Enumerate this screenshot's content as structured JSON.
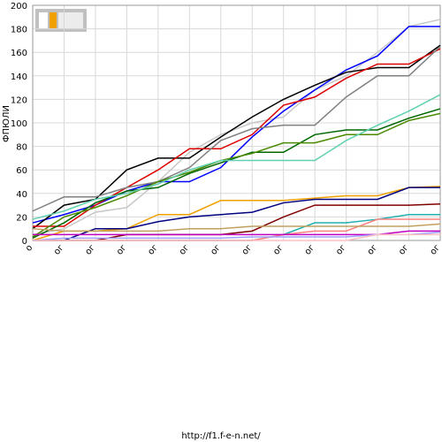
{
  "chart_data": {
    "type": "line",
    "y_label": "ФПЮЛИ",
    "footer": "http://f1.f-e-n.net/",
    "categories": [
      "о",
      "ог",
      "ог",
      "ог",
      "ог",
      "ог",
      "ог",
      "ог",
      "ог",
      "ог",
      "ог",
      "ог",
      "ог",
      "ог"
    ],
    "ylim": [
      0,
      200
    ],
    "yticks": [
      0,
      20,
      40,
      60,
      80,
      100,
      120,
      140,
      160,
      180,
      200
    ],
    "grid": true,
    "series": [
      {
        "color": "#c8c8c8",
        "values": [
          5,
          10,
          24,
          28,
          50,
          75,
          90,
          100,
          105,
          128,
          140,
          160,
          182,
          188
        ]
      },
      {
        "color": "#0000ff",
        "values": [
          15,
          22,
          30,
          42,
          50,
          50,
          62,
          88,
          110,
          128,
          145,
          157,
          182,
          182
        ]
      },
      {
        "color": "#000000",
        "values": [
          10,
          30,
          35,
          60,
          70,
          70,
          88,
          105,
          120,
          132,
          143,
          147,
          147,
          166
        ]
      },
      {
        "color": "#dd0000",
        "values": [
          12,
          12,
          30,
          45,
          60,
          78,
          78,
          90,
          115,
          122,
          138,
          150,
          150,
          163
        ]
      },
      {
        "color": "#808080",
        "values": [
          25,
          37,
          37,
          45,
          50,
          62,
          85,
          95,
          98,
          98,
          122,
          140,
          140,
          165
        ]
      },
      {
        "color": "#006600",
        "values": [
          2,
          15,
          32,
          42,
          45,
          57,
          66,
          75,
          75,
          90,
          94,
          94,
          104,
          112
        ]
      },
      {
        "color": "#4a8a00",
        "values": [
          3,
          20,
          28,
          38,
          50,
          58,
          68,
          74,
          83,
          83,
          90,
          90,
          102,
          108
        ]
      },
      {
        "color": "#60d0b0",
        "values": [
          18,
          25,
          35,
          40,
          48,
          60,
          68,
          68,
          68,
          68,
          85,
          98,
          110,
          124
        ]
      },
      {
        "color": "#f0a000",
        "values": [
          0,
          8,
          8,
          10,
          22,
          22,
          34,
          34,
          34,
          36,
          38,
          38,
          45,
          46
        ]
      },
      {
        "color": "#000080",
        "values": [
          0,
          0,
          10,
          10,
          16,
          20,
          22,
          24,
          32,
          35,
          35,
          35,
          45,
          45
        ]
      },
      {
        "color": "#800000",
        "values": [
          0,
          0,
          0,
          5,
          5,
          5,
          5,
          8,
          20,
          30,
          30,
          30,
          30,
          31
        ]
      },
      {
        "color": "#20b0b0",
        "values": [
          0,
          0,
          0,
          0,
          0,
          0,
          0,
          0,
          5,
          15,
          15,
          18,
          22,
          22
        ]
      },
      {
        "color": "#ff8080",
        "values": [
          0,
          0,
          0,
          0,
          0,
          0,
          0,
          0,
          5,
          8,
          8,
          18,
          18,
          18
        ]
      },
      {
        "color": "#c0a060",
        "values": [
          10,
          8,
          8,
          8,
          8,
          10,
          10,
          12,
          12,
          12,
          12,
          12,
          12,
          14
        ]
      },
      {
        "color": "#c000c0",
        "values": [
          5,
          5,
          5,
          5,
          5,
          5,
          5,
          5,
          5,
          5,
          5,
          5,
          8,
          8
        ]
      },
      {
        "color": "#a0a0ff",
        "values": [
          0,
          2,
          2,
          2,
          2,
          2,
          2,
          3,
          3,
          3,
          3,
          5,
          5,
          7
        ]
      },
      {
        "color": "#ffc0c0",
        "values": [
          0,
          0,
          0,
          0,
          0,
          0,
          0,
          0,
          0,
          0,
          0,
          5,
          5,
          5
        ]
      }
    ]
  }
}
